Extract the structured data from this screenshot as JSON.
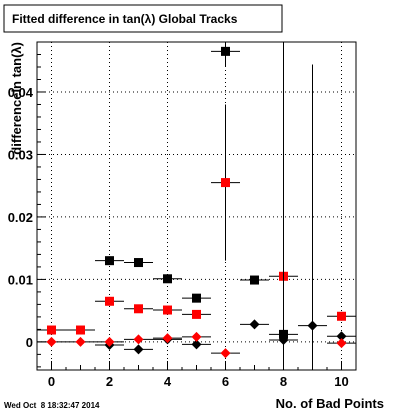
{
  "chart_data": {
    "type": "scatter",
    "title": "Fitted difference in tan(λ)  Global Tracks",
    "xlabel": "No. of Bad Points",
    "ylabel": "differencein tan(λ)",
    "xlim": [
      -0.5,
      10.5
    ],
    "ylim": [
      -0.0045,
      0.048
    ],
    "x_ticks": [
      0,
      2,
      4,
      6,
      8,
      10
    ],
    "y_ticks": [
      0,
      0.01,
      0.02,
      0.03,
      0.04
    ],
    "y_tick_labels": [
      "0",
      "0.01",
      "0.02",
      "0.03",
      "0.04"
    ],
    "grid": true,
    "series": [
      {
        "marker": "square",
        "color": "#000000",
        "points": [
          {
            "x": 2,
            "y": 0.013,
            "yerr": 0
          },
          {
            "x": 3,
            "y": 0.0127,
            "yerr": 0
          },
          {
            "x": 4,
            "y": 0.0101,
            "yerr": 0
          },
          {
            "x": 5,
            "y": 0.007,
            "yerr": 0
          },
          {
            "x": 6,
            "y": 0.0465,
            "yerr": 0.0025
          },
          {
            "x": 7,
            "y": 0.0099,
            "yerr": 0.0005
          },
          {
            "x": 8,
            "y": 0.0012,
            "yerr": 0.048
          }
        ]
      },
      {
        "marker": "square",
        "color": "#ff0000",
        "points": [
          {
            "x": 0,
            "y": 0.0019,
            "yerr": 0
          },
          {
            "x": 1,
            "y": 0.0019,
            "yerr": 0
          },
          {
            "x": 2,
            "y": 0.0065,
            "yerr": 0
          },
          {
            "x": 3,
            "y": 0.0053,
            "yerr": 0
          },
          {
            "x": 4,
            "y": 0.0051,
            "yerr": 0
          },
          {
            "x": 5,
            "y": 0.0044,
            "yerr": 0
          },
          {
            "x": 6,
            "y": 0.0255,
            "yerr": 0.0125
          },
          {
            "x": 8,
            "y": 0.0105,
            "yerr": 0
          },
          {
            "x": 10,
            "y": 0.0041,
            "yerr": 0.0007
          }
        ]
      },
      {
        "marker": "diamond",
        "color": "#000000",
        "points": [
          {
            "x": 2,
            "y": -0.0005,
            "yerr": 0
          },
          {
            "x": 3,
            "y": -0.0012,
            "yerr": 0
          },
          {
            "x": 4,
            "y": 0.0004,
            "yerr": 0
          },
          {
            "x": 5,
            "y": -0.0004,
            "yerr": 0
          },
          {
            "x": 7,
            "y": 0.0028,
            "yerr": 0.0007
          },
          {
            "x": 8,
            "y": 0.0003,
            "yerr": 0.048
          },
          {
            "x": 9,
            "y": 0.0026,
            "yerr": 0.0418
          },
          {
            "x": 10,
            "y": 0.0009,
            "yerr": 0.0007
          }
        ]
      },
      {
        "marker": "diamond",
        "color": "#ff0000",
        "points": [
          {
            "x": 0,
            "y": 0.0,
            "yerr": 0
          },
          {
            "x": 1,
            "y": 0.0,
            "yerr": 0
          },
          {
            "x": 2,
            "y": 0.0,
            "yerr": 0
          },
          {
            "x": 3,
            "y": 0.0004,
            "yerr": 0
          },
          {
            "x": 4,
            "y": 0.0006,
            "yerr": 0
          },
          {
            "x": 5,
            "y": 0.0008,
            "yerr": 0
          },
          {
            "x": 6,
            "y": -0.0018,
            "yerr": 0
          },
          {
            "x": 10,
            "y": -0.0002,
            "yerr": 0
          }
        ]
      }
    ]
  },
  "timestamp": "Wed Oct  8 18:32:47 2014"
}
